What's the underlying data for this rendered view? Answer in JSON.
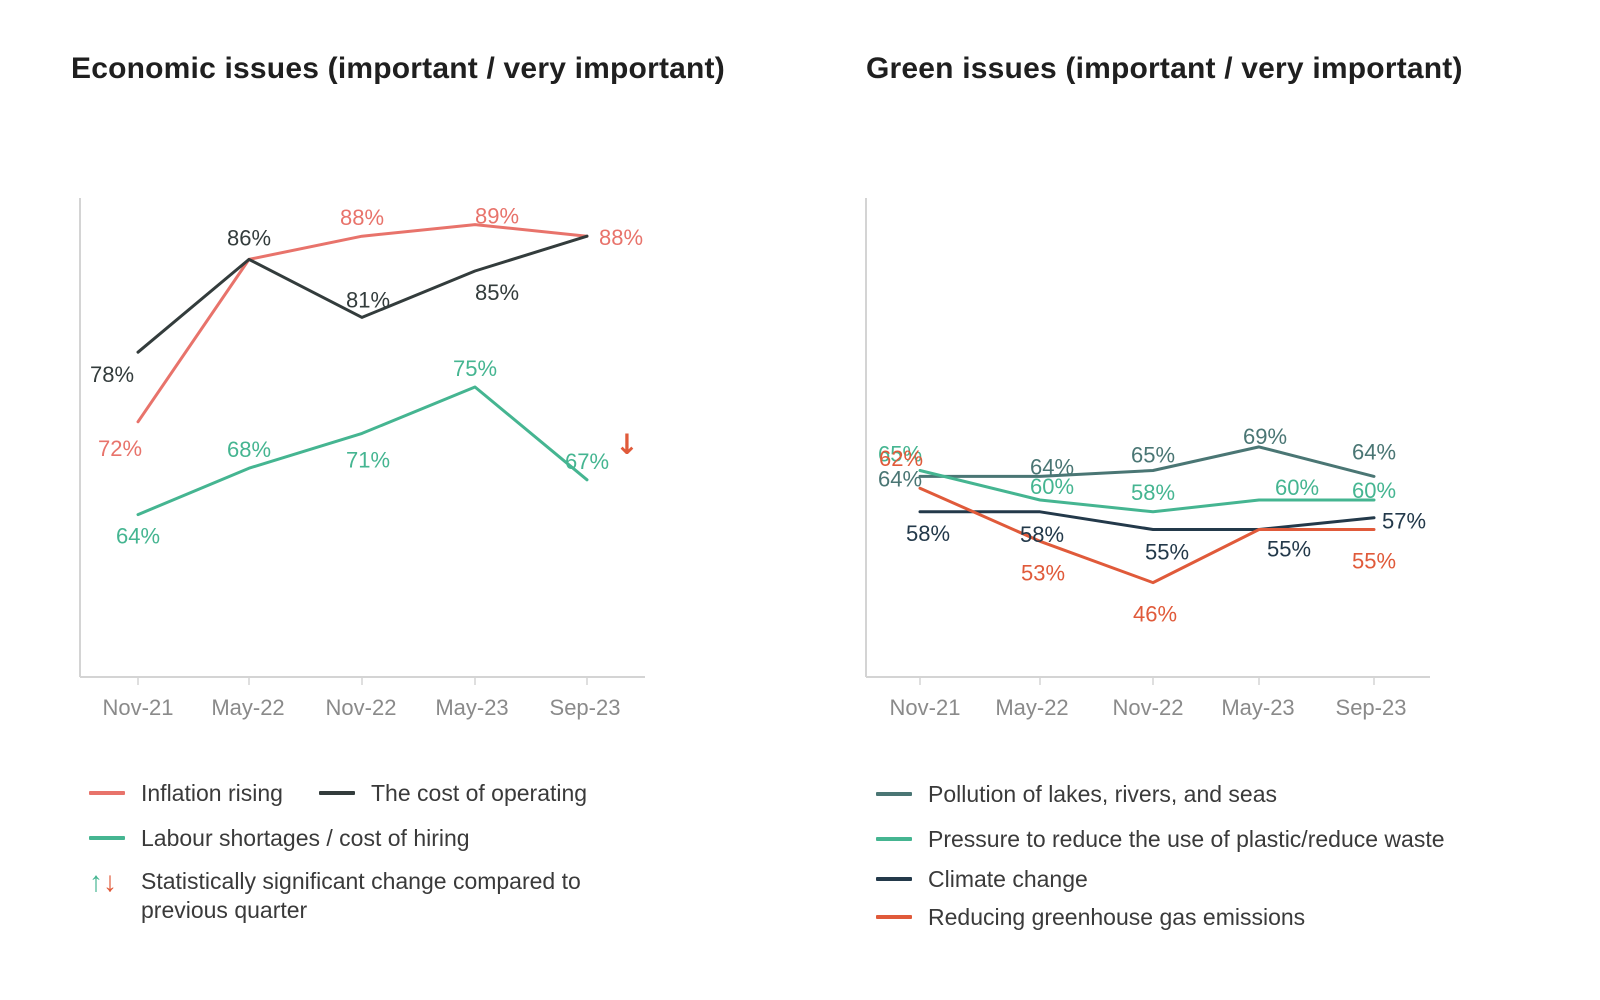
{
  "chart_data": [
    {
      "type": "line",
      "title": "Economic issues (important / very important)",
      "categories": [
        "Nov-21",
        "May-22",
        "Nov-22",
        "May-23",
        "Sep-23"
      ],
      "ylim": [
        0,
        100
      ],
      "series": [
        {
          "name": "Inflation rising",
          "color": "#e8736b",
          "values": [
            72,
            86,
            88,
            89,
            88
          ],
          "labels": [
            "72%",
            "",
            "88%",
            "89%",
            "88%"
          ]
        },
        {
          "name": "The cost of operating",
          "color": "#333c3c",
          "values": [
            78,
            86,
            81,
            85,
            88
          ],
          "labels": [
            "78%",
            "86%",
            "81%",
            "85%",
            ""
          ]
        },
        {
          "name": "Labour shortages / cost of hiring",
          "color": "#45b591",
          "values": [
            64,
            68,
            71,
            75,
            67
          ],
          "labels": [
            "64%",
            "68%",
            "71%",
            "75%",
            "67%"
          ]
        }
      ],
      "significance_markers": [
        {
          "series": "Labour shortages / cost of hiring",
          "category": "Sep-23",
          "direction": "down",
          "symbol": "↓",
          "color": "#e05a3a"
        }
      ],
      "legend": {
        "items": [
          "Inflation rising",
          "The cost of operating",
          "Labour shortages / cost of hiring"
        ],
        "significance_note": "Statistically significant change compared to previous quarter",
        "up_arrow": "↑",
        "down_arrow": "↓",
        "up_color": "#45b591",
        "down_color": "#e05a3a"
      }
    },
    {
      "type": "line",
      "title": "Green issues (important / very important)",
      "categories": [
        "Nov-21",
        "May-22",
        "Nov-22",
        "May-23",
        "Sep-23"
      ],
      "ylim": [
        0,
        100
      ],
      "series": [
        {
          "name": "Pollution of lakes, rivers, and seas",
          "color": "#4a7674",
          "values": [
            64,
            64,
            65,
            69,
            64
          ],
          "labels": [
            "64%",
            "64%",
            "65%",
            "69%",
            "64%"
          ]
        },
        {
          "name": "Pressure to reduce the use of plastic/reduce waste",
          "color": "#45b591",
          "values": [
            65,
            60,
            58,
            60,
            60
          ],
          "labels": [
            "65%",
            "60%",
            "58%",
            "60%",
            "60%"
          ]
        },
        {
          "name": "Climate change",
          "color": "#23394a",
          "values": [
            58,
            58,
            55,
            55,
            57
          ],
          "labels": [
            "58%",
            "58%",
            "55%",
            "55%",
            "57%"
          ]
        },
        {
          "name": "Reducing greenhouse gas emissions",
          "color": "#e05a3a",
          "values": [
            62,
            53,
            46,
            55,
            55
          ],
          "labels": [
            "62%",
            "53%",
            "46%",
            "",
            "55%"
          ]
        }
      ],
      "legend": {
        "items": [
          "Pollution of lakes, rivers, and seas",
          "Pressure to reduce the use of plastic/reduce waste",
          "Climate change",
          "Reducing greenhouse gas emissions"
        ]
      }
    }
  ]
}
